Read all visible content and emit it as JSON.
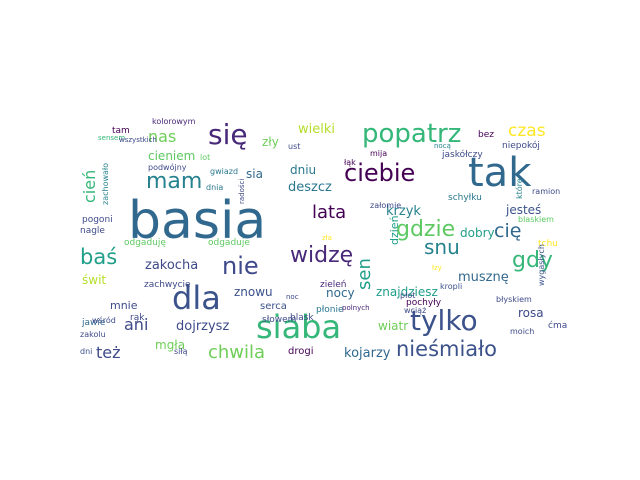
{
  "words": [
    {
      "text": "basia",
      "color": "#31688e"
    },
    {
      "text": "siaba",
      "color": "#35b779"
    },
    {
      "text": "tak",
      "color": "#31688e"
    },
    {
      "text": "popatrz",
      "color": "#35b779"
    },
    {
      "text": "dla",
      "color": "#3b528b"
    },
    {
      "text": "ciebie",
      "color": "#440154"
    },
    {
      "text": "tylko",
      "color": "#3b528b"
    },
    {
      "text": "nieśmiało",
      "color": "#3b528b"
    },
    {
      "text": "gdzie",
      "color": "#5ec962"
    },
    {
      "text": "się",
      "color": "#482878"
    },
    {
      "text": "mam",
      "color": "#26828e"
    },
    {
      "text": "nie",
      "color": "#3e4a89"
    },
    {
      "text": "widzę",
      "color": "#482878"
    },
    {
      "text": "baś",
      "color": "#1f9e89"
    },
    {
      "text": "snu",
      "color": "#26828e"
    },
    {
      "text": "gdy",
      "color": "#35b779"
    },
    {
      "text": "chwila",
      "color": "#6ece58"
    },
    {
      "text": "czas",
      "color": "#fde725"
    },
    {
      "text": "lata",
      "color": "#440154"
    },
    {
      "text": "sen",
      "color": "#1f9e89"
    },
    {
      "text": "cię",
      "color": "#31688e"
    },
    {
      "text": "ani",
      "color": "#3e4a89"
    },
    {
      "text": "też",
      "color": "#3e4a89"
    },
    {
      "text": "nas",
      "color": "#6ece58"
    },
    {
      "text": "cień",
      "color": "#35b779"
    },
    {
      "text": "wielki",
      "color": "#b5de2b"
    },
    {
      "text": "krzyk",
      "color": "#26828e"
    },
    {
      "text": "deszcz",
      "color": "#2a788e"
    },
    {
      "text": "dniu",
      "color": "#2a788e"
    },
    {
      "text": "zakocha",
      "color": "#3e4a89"
    },
    {
      "text": "sia",
      "color": "#31688e"
    },
    {
      "text": "mgła",
      "color": "#6ece58"
    },
    {
      "text": "dojrzysz",
      "color": "#3e4a89"
    },
    {
      "text": "nocy",
      "color": "#31688e"
    },
    {
      "text": "kojarzy",
      "color": "#31688e"
    },
    {
      "text": "wiatr",
      "color": "#6ece58"
    },
    {
      "text": "znajdziesz",
      "color": "#1f9e89"
    },
    {
      "text": "musznę",
      "color": "#31688e"
    },
    {
      "text": "jesteś",
      "color": "#3b528b"
    },
    {
      "text": "dobry",
      "color": "#1f9e89"
    },
    {
      "text": "rosa",
      "color": "#3e4a89"
    },
    {
      "text": "cieniem",
      "color": "#5ec962"
    },
    {
      "text": "świt",
      "color": "#b5de2b"
    },
    {
      "text": "zły",
      "color": "#6ece58"
    },
    {
      "text": "znowu",
      "color": "#3b528b"
    },
    {
      "text": "mnie",
      "color": "#3e4a89"
    },
    {
      "text": "zachwycie",
      "color": "#3e4a89"
    },
    {
      "text": "odgaduję",
      "color": "#5ec962"
    },
    {
      "text": "odgaduje",
      "color": "#5ec962"
    },
    {
      "text": "dzień",
      "color": "#1f9e89"
    },
    {
      "text": "serca",
      "color": "#3b528b"
    },
    {
      "text": "płonie",
      "color": "#2a788e"
    },
    {
      "text": "blask",
      "color": "#3e4a89"
    },
    {
      "text": "słowem",
      "color": "#3e4a89"
    },
    {
      "text": "drogi",
      "color": "#440154"
    },
    {
      "text": "jawie",
      "color": "#31688e"
    },
    {
      "text": "zakolu",
      "color": "#3e4a89"
    },
    {
      "text": "dni",
      "color": "#3b528b"
    },
    {
      "text": "siłą",
      "color": "#3e4a89"
    },
    {
      "text": "rąk",
      "color": "#3e4a89"
    },
    {
      "text": "wśród",
      "color": "#3e4a89"
    },
    {
      "text": "łąk",
      "color": "#440154"
    },
    {
      "text": "mija",
      "color": "#440154"
    },
    {
      "text": "ust",
      "color": "#3e4a89"
    },
    {
      "text": "nocą",
      "color": "#26828e"
    },
    {
      "text": "gwiazd",
      "color": "#2a788e"
    },
    {
      "text": "lot",
      "color": "#5ec962"
    },
    {
      "text": "dnia",
      "color": "#2a788e"
    },
    {
      "text": "podwójny",
      "color": "#3e4a89"
    },
    {
      "text": "radości",
      "color": "#3e4a89"
    },
    {
      "text": "załomie",
      "color": "#3e4a89"
    },
    {
      "text": "zieleń",
      "color": "#482878"
    },
    {
      "text": "zła",
      "color": "#fde725"
    },
    {
      "text": "płot",
      "color": "#3e4a89"
    },
    {
      "text": "łzy",
      "color": "#fde725"
    },
    {
      "text": "kropli",
      "color": "#3b528b"
    },
    {
      "text": "wciąż",
      "color": "#3e4a89"
    },
    {
      "text": "pochyły",
      "color": "#440154"
    },
    {
      "text": "polnych",
      "color": "#482878"
    },
    {
      "text": "noc",
      "color": "#3e4a89"
    },
    {
      "text": "tam",
      "color": "#440154"
    },
    {
      "text": "sensem",
      "color": "#35b779"
    },
    {
      "text": "wszystkich",
      "color": "#3e4a89"
    },
    {
      "text": "kolorowym",
      "color": "#482878"
    },
    {
      "text": "zachowało",
      "color": "#26828e"
    },
    {
      "text": "pogoni",
      "color": "#3e4a89"
    },
    {
      "text": "nagle",
      "color": "#3e4a89"
    },
    {
      "text": "bez",
      "color": "#440154"
    },
    {
      "text": "niepokój",
      "color": "#3e4a89"
    },
    {
      "text": "jaskółczy",
      "color": "#3e4a89"
    },
    {
      "text": "które",
      "color": "#26828e"
    },
    {
      "text": "schyłku",
      "color": "#2a788e"
    },
    {
      "text": "ramion",
      "color": "#3e4a89"
    },
    {
      "text": "blaskiem",
      "color": "#5ec962"
    },
    {
      "text": "tchu",
      "color": "#fde725"
    },
    {
      "text": "wygasłych",
      "color": "#3b528b"
    },
    {
      "text": "błyskiem",
      "color": "#3e4a89"
    },
    {
      "text": "moich",
      "color": "#3e4a89"
    },
    {
      "text": "ćma",
      "color": "#3e4a89"
    }
  ]
}
